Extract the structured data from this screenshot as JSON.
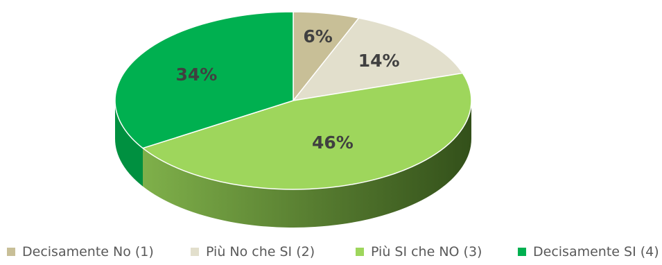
{
  "chart_data": {
    "type": "pie",
    "categories": [
      "Decisamente No (1)",
      "Più No che SI (2)",
      "Più SI che NO (3)",
      "Decisamente SI (4)"
    ],
    "values": [
      6,
      14,
      46,
      34
    ],
    "labels": [
      "6%",
      "14%",
      "46%",
      "34%"
    ],
    "colors": [
      "#c8bf97",
      "#e2dfcc",
      "#9ed65c",
      "#00b050"
    ],
    "side_colors": [
      "#8a8466",
      "#9e9b8c",
      "#3f5e22",
      "#009040"
    ],
    "legend_position": "bottom",
    "style": "3d-pie"
  }
}
